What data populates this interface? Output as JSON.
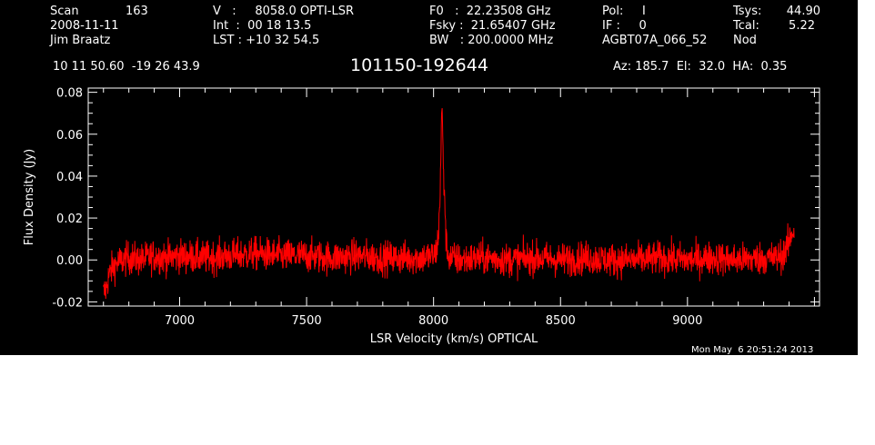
{
  "header": {
    "col1": {
      "scan_label": "Scan",
      "scan_value": "163",
      "date": "2008-11-11",
      "observer": "Jim Braatz"
    },
    "col2": {
      "v_line": "V   :     8058.0 OPTI-LSR",
      "int_line": "Int  :  00 18 13.5",
      "lst_line": "LST : +10 32 54.5"
    },
    "col3": {
      "f0_line": "F0   :  22.23508 GHz",
      "fsky_line": "Fsky :  21.65407 GHz",
      "bw_line": "BW   : 200.0000 MHz"
    },
    "col4": {
      "pol_line": "Pol:     I",
      "if_line": "IF :     0",
      "project": "AGBT07A_066_52"
    },
    "col5": {
      "tsys_label": "Tsys:",
      "tsys_value": "44.90",
      "tcal_label": "Tcal:",
      "tcal_value": "5.22",
      "mode": "Nod"
    },
    "coords": "10 11 50.60  -19 26 43.9",
    "source_name": "101150-192644",
    "az_el_ha": "Az: 185.7  El:  32.0  HA:  0.35"
  },
  "footer": {
    "timestamp": "Mon May  6 20:51:24 2013"
  },
  "chart_data": {
    "type": "line",
    "xlabel": "LSR Velocity (km/s) OPTICAL",
    "ylabel": "Flux Density (Jy)",
    "xlim": [
      6640,
      9520
    ],
    "ylim": [
      -0.022,
      0.082
    ],
    "xticks": [
      7000,
      7500,
      8000,
      8500,
      9000
    ],
    "xtick_labels": [
      "7000",
      "7500",
      "8000",
      "8500",
      "9000"
    ],
    "yticks": [
      -0.02,
      0.0,
      0.02,
      0.04,
      0.06,
      0.08
    ],
    "ytick_labels": [
      "-0.02",
      "0.00",
      "0.02",
      "0.04",
      "0.06",
      "0.08"
    ],
    "series": [
      {
        "color": "#ff0000",
        "x": [
          6700,
          6710,
          6720,
          6730,
          6740,
          6760,
          6780,
          6800,
          6850,
          6900,
          6950,
          7000,
          7100,
          7200,
          7300,
          7400,
          7500,
          7600,
          7700,
          7800,
          7900,
          7950,
          8000,
          8010,
          8020,
          8025,
          8030,
          8033,
          8036,
          8040,
          8043,
          8046,
          8050,
          8055,
          8060,
          8070,
          8100,
          8200,
          8300,
          8400,
          8500,
          8600,
          8700,
          8800,
          8900,
          9000,
          9100,
          9200,
          9300,
          9350,
          9380,
          9400,
          9410,
          9420
        ],
        "y": [
          -0.016,
          -0.014,
          -0.008,
          -0.005,
          -0.003,
          -0.001,
          0.0,
          0.001,
          0.0,
          0.002,
          0.001,
          0.002,
          0.001,
          0.002,
          0.003,
          0.002,
          0.002,
          0.001,
          0.002,
          0.001,
          0.001,
          0.001,
          0.002,
          0.004,
          0.012,
          0.03,
          0.058,
          0.072,
          0.062,
          0.034,
          0.035,
          0.02,
          0.008,
          0.003,
          0.002,
          0.001,
          0.0,
          0.001,
          0.0,
          0.001,
          0.0,
          0.001,
          0.0,
          0.0,
          0.001,
          0.0,
          0.001,
          0.0,
          0.001,
          0.001,
          0.003,
          0.008,
          0.013,
          0.014
        ],
        "noise_rms": 0.004
      }
    ]
  }
}
